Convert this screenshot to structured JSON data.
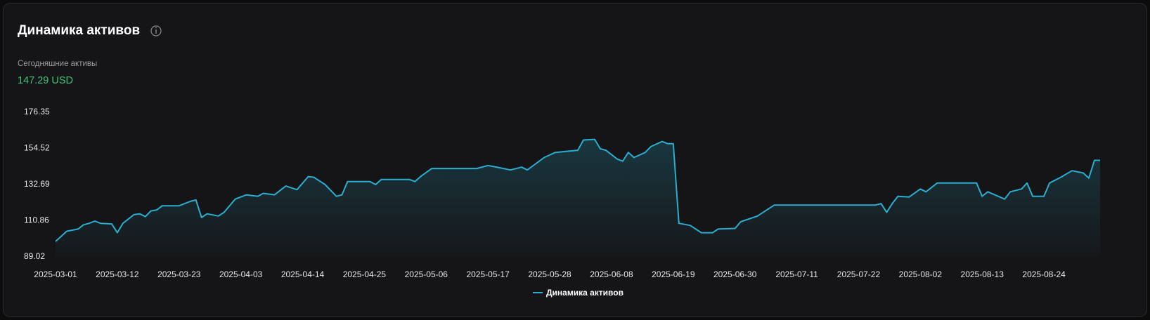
{
  "header": {
    "title": "Динамика активов",
    "subtitle": "Сегодняшние активы",
    "today_value": "147.29 USD"
  },
  "chart_data": {
    "type": "line",
    "x": [
      "2025-03-01",
      "2025-03-03",
      "2025-03-05",
      "2025-03-06",
      "2025-03-07",
      "2025-03-08",
      "2025-03-09",
      "2025-03-11",
      "2025-03-12",
      "2025-03-13",
      "2025-03-15",
      "2025-03-16",
      "2025-03-17",
      "2025-03-18",
      "2025-03-19",
      "2025-03-20",
      "2025-03-23",
      "2025-03-25",
      "2025-03-26",
      "2025-03-27",
      "2025-03-28",
      "2025-03-30",
      "2025-03-31",
      "2025-04-02",
      "2025-04-04",
      "2025-04-06",
      "2025-04-07",
      "2025-04-09",
      "2025-04-11",
      "2025-04-13",
      "2025-04-15",
      "2025-04-16",
      "2025-04-18",
      "2025-04-20",
      "2025-04-21",
      "2025-04-22",
      "2025-04-26",
      "2025-04-27",
      "2025-04-28",
      "2025-05-03",
      "2025-05-04",
      "2025-05-05",
      "2025-05-07",
      "2025-05-15",
      "2025-05-17",
      "2025-05-19",
      "2025-05-21",
      "2025-05-23",
      "2025-05-24",
      "2025-05-27",
      "2025-05-29",
      "2025-06-02",
      "2025-06-03",
      "2025-06-05",
      "2025-06-06",
      "2025-06-07",
      "2025-06-09",
      "2025-06-10",
      "2025-06-11",
      "2025-06-12",
      "2025-06-14",
      "2025-06-15",
      "2025-06-17",
      "2025-06-18",
      "2025-06-19",
      "2025-06-20",
      "2025-06-22",
      "2025-06-24",
      "2025-06-26",
      "2025-06-27",
      "2025-06-30",
      "2025-07-01",
      "2025-07-04",
      "2025-07-05",
      "2025-07-07",
      "2025-07-25",
      "2025-07-26",
      "2025-07-27",
      "2025-07-28",
      "2025-07-29",
      "2025-07-31",
      "2025-08-02",
      "2025-08-03",
      "2025-08-05",
      "2025-08-12",
      "2025-08-13",
      "2025-08-14",
      "2025-08-17",
      "2025-08-18",
      "2025-08-20",
      "2025-08-21",
      "2025-08-22",
      "2025-08-24",
      "2025-08-25",
      "2025-08-27",
      "2025-08-29",
      "2025-08-31",
      "2025-09-01",
      "2025-09-02",
      "2025-09-03"
    ],
    "series": [
      {
        "name": "Динамика активов",
        "color": "#2aaed0",
        "values": [
          98.3,
          104.5,
          105.8,
          108.4,
          109.3,
          110.6,
          109.3,
          108.9,
          103.6,
          109.3,
          114.6,
          115.0,
          113.3,
          116.8,
          117.3,
          119.9,
          119.9,
          122.5,
          123.4,
          112.8,
          115.0,
          113.7,
          115.9,
          123.9,
          126.5,
          125.6,
          127.4,
          126.5,
          131.8,
          129.6,
          137.5,
          137.1,
          132.7,
          125.6,
          126.5,
          134.5,
          134.5,
          132.7,
          135.8,
          135.8,
          134.5,
          137.5,
          142.4,
          142.4,
          144.2,
          142.9,
          141.5,
          143.2,
          141.5,
          149.0,
          152.1,
          153.4,
          159.6,
          160.0,
          154.3,
          153.4,
          148.1,
          146.8,
          152.1,
          149.0,
          152.1,
          155.6,
          158.7,
          157.4,
          157.4,
          109.3,
          108.0,
          103.6,
          103.6,
          105.8,
          106.2,
          110.2,
          113.7,
          115.9,
          120.3,
          120.3,
          121.2,
          115.9,
          121.2,
          125.6,
          125.2,
          130.0,
          128.3,
          133.6,
          133.6,
          125.6,
          128.3,
          123.9,
          128.3,
          130.0,
          133.6,
          125.6,
          125.6,
          133.6,
          137.1,
          141.1,
          139.7,
          136.6,
          147.29,
          147.29
        ]
      }
    ],
    "xlim": [
      "2025-03-01",
      "2025-09-03"
    ],
    "xticks": [
      "2025-03-01",
      "2025-03-12",
      "2025-03-23",
      "2025-04-03",
      "2025-04-14",
      "2025-04-25",
      "2025-05-06",
      "2025-05-17",
      "2025-05-28",
      "2025-06-08",
      "2025-06-19",
      "2025-06-30",
      "2025-07-11",
      "2025-07-22",
      "2025-08-02",
      "2025-08-13",
      "2025-08-24"
    ],
    "ylim": [
      89.02,
      176.35
    ],
    "yticks": [
      89.02,
      110.86,
      132.69,
      154.52,
      176.35
    ],
    "grid": false
  }
}
